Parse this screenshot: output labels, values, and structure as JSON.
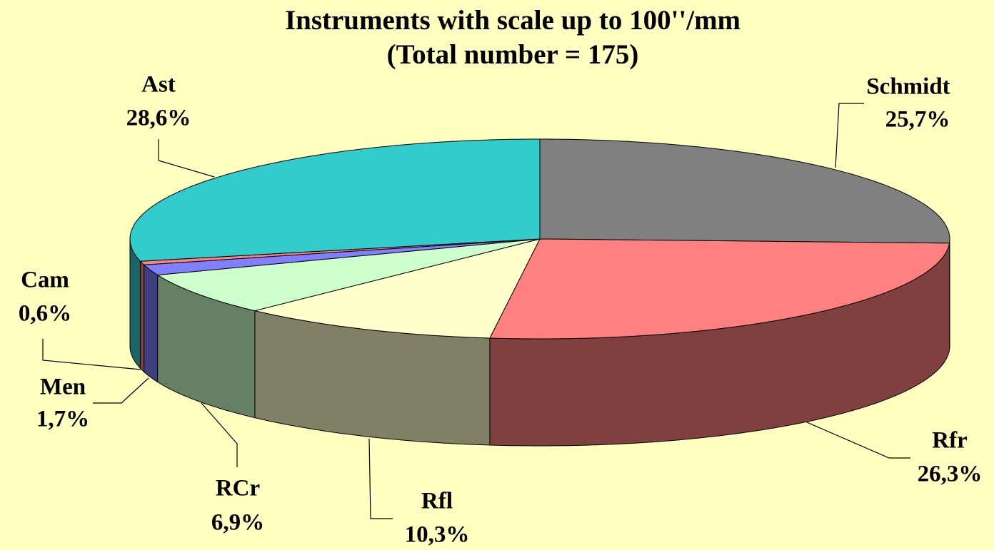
{
  "chart_data": {
    "type": "pie",
    "title": "Instruments with scale up to 100''/mm",
    "subtitle": "(Total number = 175)",
    "categories": [
      "Schmidt",
      "Rfr",
      "Rfl",
      "RCr",
      "Men",
      "Cam",
      "Ast"
    ],
    "values": [
      25.7,
      26.3,
      10.3,
      6.9,
      1.7,
      0.6,
      28.6
    ],
    "value_labels": [
      "25,7%",
      "26,3%",
      "10,3%",
      "6,9%",
      "1,7%",
      "0,6%",
      "28,6%"
    ],
    "colors": [
      "#808080",
      "#ff8080",
      "#ffffcc",
      "#ccffcc",
      "#8080ff",
      "#ff8080",
      "#33cccc"
    ]
  }
}
